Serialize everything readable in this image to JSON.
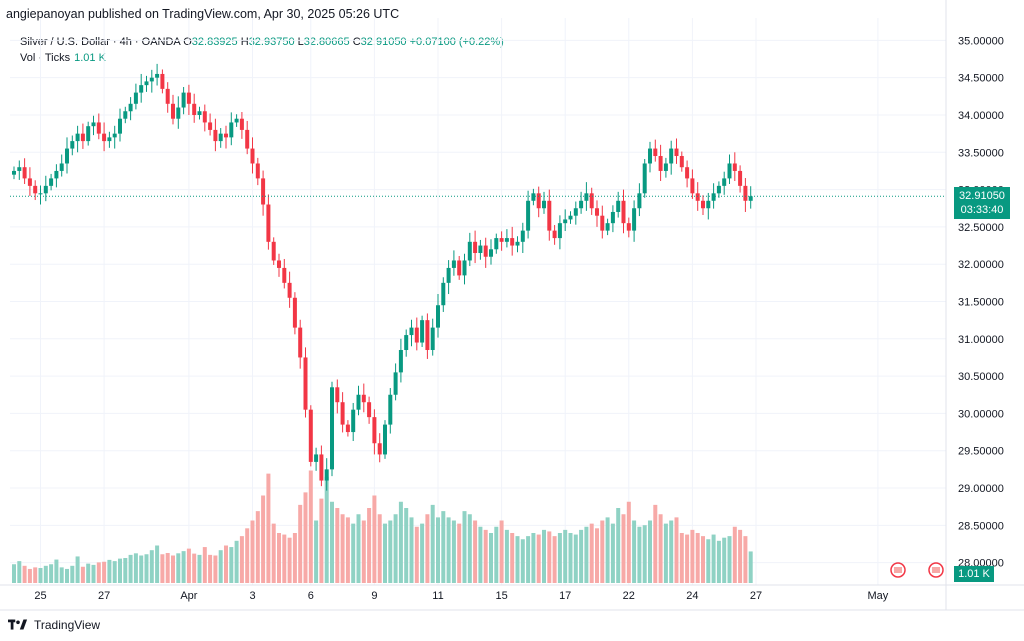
{
  "header": {
    "published_by": "angiepanoyan published on TradingView.com, Apr 30, 2025 05:26 UTC"
  },
  "legend": {
    "symbol": "Silver / U.S. Dollar · 4h · OANDA",
    "open_label": "O",
    "open": "32.83925",
    "high_label": "H",
    "high": "32.93750",
    "low_label": "L",
    "low": "32.80665",
    "close_label": "C",
    "close": "32.91050",
    "change": "+0.07100 (+0.22%)",
    "vol_label": "Vol · Ticks",
    "vol_value": "1.01 K"
  },
  "price_badge": {
    "price": "32.91050",
    "countdown": "03:33:40"
  },
  "volume_badge": "1.01 K",
  "brand": "TradingView",
  "colors": {
    "up": "#089981",
    "down": "#f23645",
    "up_vol": "#8fd2c4",
    "down_vol": "#f7a9a7",
    "grid": "#f0f3fa",
    "last_line": "#089981"
  },
  "chart_data": {
    "type": "candlestick",
    "timeframe": "4h",
    "ylim": [
      27.7,
      35.3
    ],
    "y_ticks": [
      "35.00000",
      "34.50000",
      "34.00000",
      "33.50000",
      "33.00000",
      "32.50000",
      "32.00000",
      "31.50000",
      "31.00000",
      "30.50000",
      "30.00000",
      "29.50000",
      "29.00000",
      "28.50000",
      "28.00000"
    ],
    "y_tick_values": [
      35.0,
      34.5,
      34.0,
      33.5,
      33.0,
      32.5,
      32.0,
      31.5,
      31.0,
      30.5,
      30.0,
      29.5,
      29.0,
      28.5,
      28.0
    ],
    "x_ticks": [
      {
        "label": "25",
        "bar": 5
      },
      {
        "label": "27",
        "bar": 17
      },
      {
        "label": "Apr",
        "bar": 33
      },
      {
        "label": "3",
        "bar": 45
      },
      {
        "label": "6",
        "bar": 56
      },
      {
        "label": "9",
        "bar": 68
      },
      {
        "label": "11",
        "bar": 80
      },
      {
        "label": "15",
        "bar": 92
      },
      {
        "label": "17",
        "bar": 104
      },
      {
        "label": "22",
        "bar": 116
      },
      {
        "label": "24",
        "bar": 128
      },
      {
        "label": "27",
        "bar": 140
      },
      {
        "label": "May",
        "bar": 163
      }
    ],
    "last_price": 32.9105,
    "closes": [
      33.25,
      33.3,
      33.15,
      33.05,
      32.95,
      32.95,
      33.05,
      33.15,
      33.25,
      33.35,
      33.55,
      33.65,
      33.75,
      33.65,
      33.85,
      33.9,
      33.75,
      33.65,
      33.7,
      33.75,
      33.95,
      34.05,
      34.15,
      34.3,
      34.4,
      34.45,
      34.5,
      34.55,
      34.35,
      34.15,
      33.95,
      34.1,
      34.3,
      34.15,
      34.0,
      34.05,
      33.9,
      33.8,
      33.65,
      33.75,
      33.7,
      33.9,
      33.95,
      33.8,
      33.55,
      33.35,
      33.15,
      32.8,
      32.3,
      32.05,
      31.95,
      31.75,
      31.55,
      31.15,
      30.75,
      30.05,
      29.35,
      29.45,
      29.1,
      29.25,
      30.35,
      30.15,
      29.85,
      29.75,
      30.05,
      30.25,
      30.15,
      29.95,
      29.6,
      29.45,
      29.85,
      30.25,
      30.55,
      30.85,
      31.05,
      31.15,
      30.95,
      31.25,
      30.85,
      31.15,
      31.45,
      31.75,
      31.95,
      32.05,
      31.85,
      32.05,
      32.3,
      32.15,
      32.25,
      32.1,
      32.2,
      32.35,
      32.3,
      32.35,
      32.25,
      32.3,
      32.45,
      32.85,
      32.95,
      32.75,
      32.85,
      32.45,
      32.35,
      32.55,
      32.6,
      32.65,
      32.75,
      32.85,
      32.95,
      32.75,
      32.65,
      32.45,
      32.55,
      32.7,
      32.85,
      32.55,
      32.45,
      32.75,
      32.95,
      33.35,
      33.55,
      33.45,
      33.25,
      33.35,
      33.55,
      33.45,
      33.3,
      33.15,
      32.95,
      32.85,
      32.75,
      32.85,
      32.95,
      33.05,
      33.15,
      33.35,
      33.25,
      33.05,
      32.85,
      32.9105
    ],
    "volumes": [
      0.6,
      0.7,
      0.55,
      0.45,
      0.5,
      0.48,
      0.55,
      0.6,
      0.75,
      0.5,
      0.45,
      0.55,
      0.85,
      0.52,
      0.62,
      0.58,
      0.66,
      0.68,
      0.74,
      0.7,
      0.78,
      0.8,
      0.9,
      0.95,
      0.88,
      0.92,
      1.05,
      1.2,
      0.92,
      0.96,
      0.88,
      0.95,
      1.02,
      1.1,
      0.94,
      0.9,
      1.15,
      0.9,
      0.88,
      1.05,
      1.2,
      1.15,
      1.35,
      1.5,
      1.75,
      2.0,
      2.3,
      2.8,
      3.5,
      1.9,
      1.6,
      1.55,
      1.45,
      1.6,
      2.5,
      2.9,
      3.6,
      2.0,
      2.7,
      3.4,
      2.6,
      2.4,
      2.2,
      2.1,
      1.9,
      2.2,
      2.0,
      2.4,
      2.8,
      2.2,
      1.9,
      2.0,
      2.2,
      2.6,
      2.4,
      2.1,
      1.8,
      1.9,
      2.2,
      2.5,
      2.1,
      2.3,
      2.1,
      2.0,
      1.9,
      2.3,
      2.2,
      2.0,
      1.8,
      1.7,
      1.6,
      1.8,
      2.0,
      1.7,
      1.6,
      1.5,
      1.4,
      1.5,
      1.6,
      1.55,
      1.7,
      1.65,
      1.5,
      1.6,
      1.7,
      1.6,
      1.55,
      1.7,
      1.8,
      1.9,
      1.75,
      2.0,
      2.1,
      1.9,
      2.4,
      2.2,
      2.6,
      2.0,
      1.8,
      1.85,
      2.0,
      2.5,
      2.2,
      1.9,
      2.0,
      2.1,
      1.6,
      1.55,
      1.7,
      1.6,
      1.5,
      1.4,
      1.55,
      1.35,
      1.45,
      1.5,
      1.8,
      1.7,
      1.5,
      1.01
    ]
  }
}
